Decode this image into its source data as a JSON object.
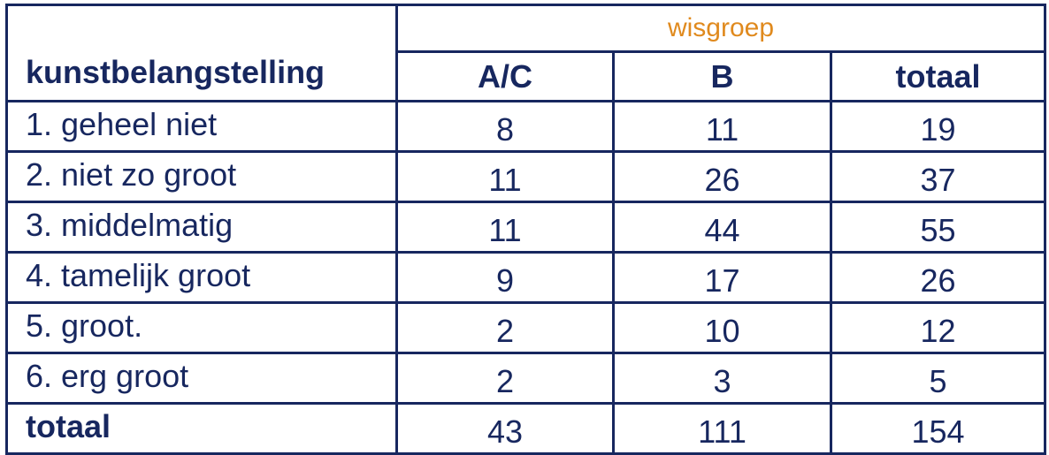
{
  "table": {
    "row_header": "kunstbelangstelling",
    "group_header": "wisgroep",
    "columns": [
      "A/C",
      "B",
      "totaal"
    ],
    "rows": [
      {
        "label": "1. geheel niet",
        "values": [
          8,
          11,
          19
        ]
      },
      {
        "label": "2. niet zo groot",
        "values": [
          11,
          26,
          37
        ]
      },
      {
        "label": "3. middelmatig",
        "values": [
          11,
          44,
          55
        ]
      },
      {
        "label": "4. tamelijk groot",
        "values": [
          9,
          17,
          26
        ]
      },
      {
        "label": "5. groot.",
        "values": [
          2,
          10,
          12
        ]
      },
      {
        "label": "6. erg groot",
        "values": [
          2,
          3,
          5
        ]
      }
    ],
    "total": {
      "label": "totaal",
      "values": [
        43,
        111,
        154
      ]
    }
  }
}
